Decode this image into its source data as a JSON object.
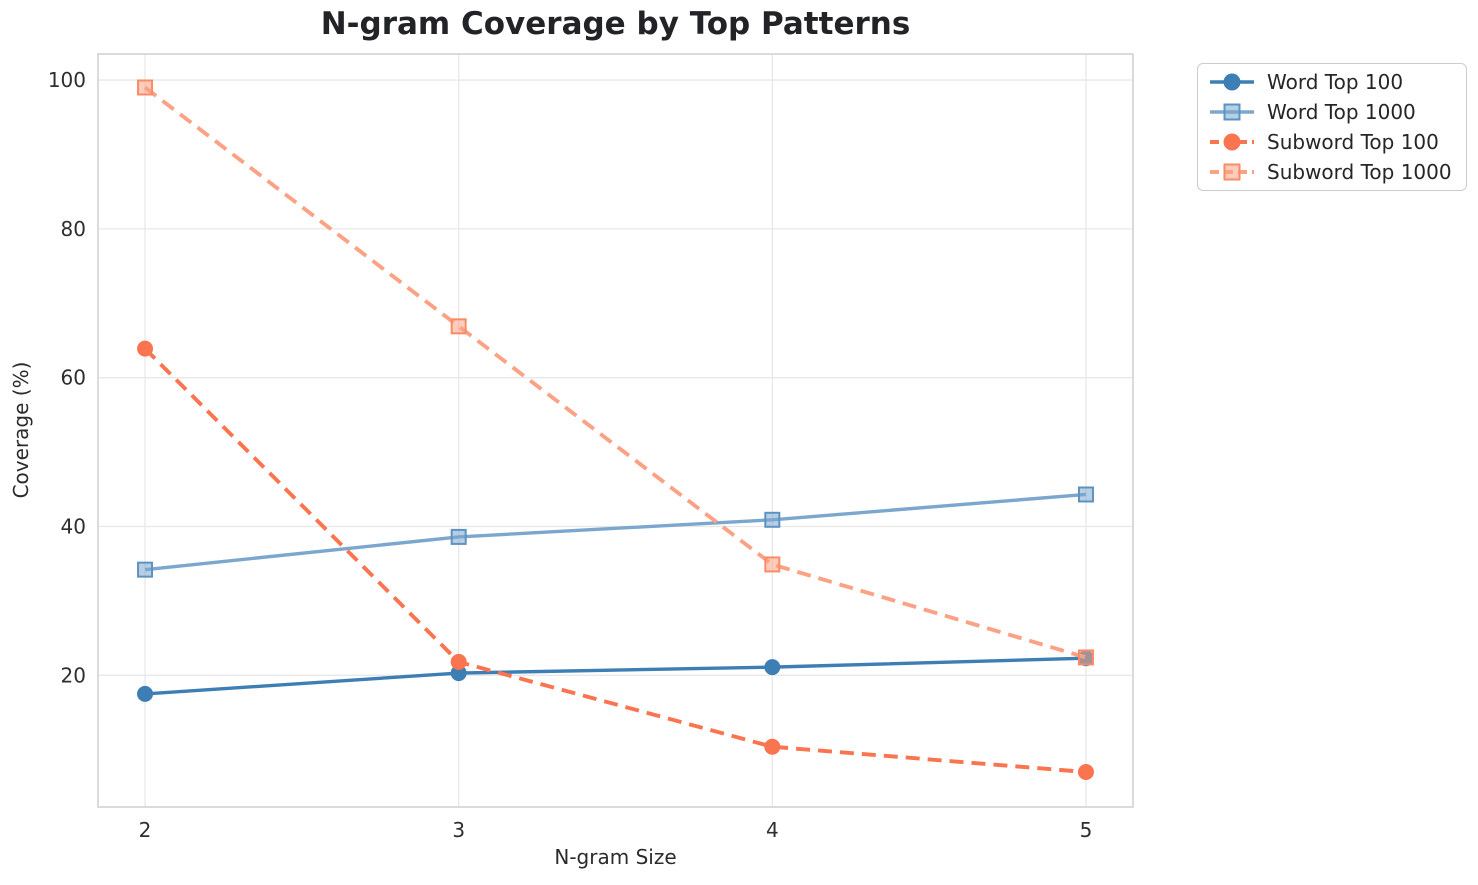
{
  "chart_data": {
    "type": "line",
    "title": "N-gram Coverage by Top Patterns",
    "xlabel": "N-gram Size",
    "ylabel": "Coverage (%)",
    "x": [
      2,
      3,
      4,
      5
    ],
    "series": [
      {
        "name": "Word Top 100",
        "values": [
          17.5,
          20.3,
          21.1,
          22.3
        ],
        "color": "#3D7EB4",
        "edge_color": "#3D7EB4",
        "marker": "circle",
        "dash": false
      },
      {
        "name": "Word Top 1000",
        "values": [
          34.2,
          38.6,
          40.9,
          44.3
        ],
        "color": "#7BA7CF",
        "edge_color": "#5E92C0",
        "marker": "square",
        "dash": false
      },
      {
        "name": "Subword Top 100",
        "values": [
          63.9,
          21.8,
          10.4,
          7.0
        ],
        "color": "#FA7450",
        "edge_color": "#FA7450",
        "marker": "circle",
        "dash": true
      },
      {
        "name": "Subword Top 1000",
        "values": [
          99.0,
          66.9,
          34.9,
          22.4
        ],
        "color": "#FCA284",
        "edge_color": "#FB8B67",
        "marker": "square",
        "dash": true
      }
    ],
    "xticks": [
      2,
      3,
      4,
      5
    ],
    "yticks": [
      20,
      40,
      60,
      80,
      100
    ],
    "xlim": [
      1.85,
      5.15
    ],
    "ylim": [
      2.3,
      103.5
    ],
    "grid": true,
    "grid_color": "#e8e8e8",
    "spine_color": "#d2d2d2",
    "text_color": "#2e2e2e",
    "legend_position": "outside-top-right"
  }
}
